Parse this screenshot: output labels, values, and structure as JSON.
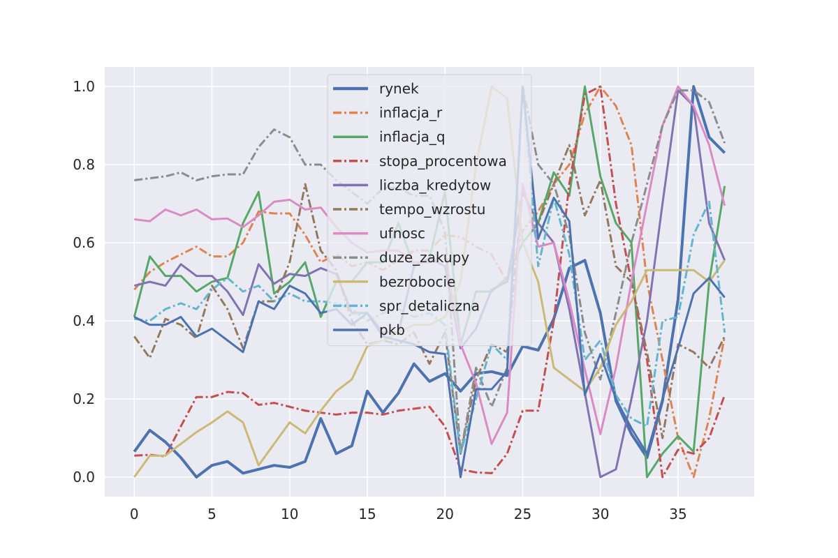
{
  "chart_data": {
    "type": "line",
    "title": "",
    "xlabel": "",
    "ylabel": "",
    "xlim": [
      -1.9,
      39.9
    ],
    "ylim": [
      -0.05,
      1.05
    ],
    "xticks": [
      0,
      5,
      10,
      15,
      20,
      25,
      30,
      35
    ],
    "yticks": [
      0.0,
      0.2,
      0.4,
      0.6,
      0.8,
      1.0
    ],
    "xtick_labels": [
      "0",
      "5",
      "10",
      "15",
      "20",
      "25",
      "30",
      "35"
    ],
    "ytick_labels": [
      "0.0",
      "0.2",
      "0.4",
      "0.6",
      "0.8",
      "1.0"
    ],
    "grid": true,
    "legend_position": "upper-center",
    "x": [
      0,
      1,
      2,
      3,
      4,
      5,
      6,
      7,
      8,
      9,
      10,
      11,
      12,
      13,
      14,
      15,
      16,
      17,
      18,
      19,
      20,
      21,
      22,
      23,
      24,
      25,
      26,
      27,
      28,
      29,
      30,
      31,
      32,
      33,
      34,
      35,
      36,
      37,
      38
    ],
    "series": [
      {
        "name": "rynek",
        "color": "#4c72b0",
        "style": "solid",
        "width": 4,
        "values": [
          0.065,
          0.12,
          0.09,
          0.05,
          0.0,
          0.03,
          0.04,
          0.01,
          0.02,
          0.03,
          0.025,
          0.04,
          0.15,
          0.06,
          0.08,
          0.22,
          0.165,
          0.215,
          0.29,
          0.245,
          0.265,
          0.22,
          0.265,
          0.27,
          0.26,
          0.335,
          0.325,
          0.405,
          0.535,
          0.555,
          0.42,
          0.195,
          0.11,
          0.05,
          0.195,
          0.455,
          1.0,
          0.87,
          0.83
        ]
      },
      {
        "name": "inflacja_r",
        "color": "#dd8452",
        "style": "dashdot",
        "width": 3,
        "values": [
          0.48,
          0.525,
          0.55,
          0.57,
          0.59,
          0.565,
          0.565,
          0.6,
          0.68,
          0.675,
          0.675,
          0.62,
          0.55,
          0.57,
          0.54,
          0.55,
          0.53,
          0.555,
          0.58,
          0.58,
          0.62,
          0.615,
          0.59,
          0.57,
          0.5,
          0.63,
          0.68,
          0.75,
          0.8,
          0.93,
          1.0,
          0.95,
          0.85,
          0.5,
          0.3,
          0.1,
          0.0,
          0.15,
          0.36
        ]
      },
      {
        "name": "inflacja_q",
        "color": "#55a868",
        "style": "solid",
        "width": 3,
        "values": [
          0.41,
          0.565,
          0.515,
          0.515,
          0.475,
          0.5,
          0.51,
          0.65,
          0.73,
          0.47,
          0.5,
          0.55,
          0.41,
          0.5,
          0.5,
          0.55,
          0.55,
          0.65,
          0.54,
          0.56,
          0.73,
          0.34,
          0.475,
          0.475,
          0.51,
          0.6,
          0.65,
          0.78,
          0.72,
          1.0,
          0.77,
          0.65,
          0.6,
          0.0,
          0.06,
          0.105,
          0.065,
          0.5,
          0.745
        ]
      },
      {
        "name": "stopa_procentowa",
        "color": "#c44e52",
        "style": "dashdot",
        "width": 3,
        "values": [
          0.055,
          0.057,
          0.053,
          0.13,
          0.205,
          0.205,
          0.218,
          0.215,
          0.185,
          0.19,
          0.18,
          0.17,
          0.165,
          0.16,
          0.165,
          0.165,
          0.16,
          0.17,
          0.175,
          0.18,
          0.13,
          0.02,
          0.012,
          0.01,
          0.06,
          0.17,
          0.17,
          0.4,
          0.75,
          0.98,
          1.0,
          0.7,
          0.5,
          0.3,
          0.0,
          0.07,
          0.06,
          0.1,
          0.21
        ]
      },
      {
        "name": "liczba_kredytow",
        "color": "#8172b3",
        "style": "solid",
        "width": 3,
        "values": [
          0.49,
          0.5,
          0.49,
          0.545,
          0.515,
          0.515,
          0.475,
          0.415,
          0.545,
          0.495,
          0.52,
          0.515,
          0.535,
          0.52,
          0.42,
          0.42,
          0.37,
          0.37,
          0.54,
          0.56,
          0.54,
          0.33,
          0.38,
          0.48,
          0.5,
          0.73,
          0.65,
          0.6,
          0.43,
          0.215,
          0.0,
          0.02,
          0.2,
          0.4,
          0.7,
          0.99,
          0.95,
          0.65,
          0.555
        ]
      },
      {
        "name": "tempo_wzrostu",
        "color": "#937860",
        "style": "dashdot",
        "width": 3,
        "values": [
          0.36,
          0.305,
          0.405,
          0.39,
          0.355,
          0.49,
          0.43,
          0.33,
          0.45,
          0.45,
          0.55,
          0.75,
          0.58,
          0.53,
          0.4,
          0.34,
          0.35,
          0.34,
          0.37,
          0.29,
          0.37,
          0.06,
          0.25,
          0.34,
          0.32,
          0.73,
          0.65,
          0.75,
          0.85,
          0.67,
          0.76,
          0.54,
          0.5,
          0.32,
          0.1,
          0.34,
          0.32,
          0.28,
          0.36
        ]
      },
      {
        "name": "ufnosc",
        "color": "#da8bc3",
        "style": "solid",
        "width": 3,
        "values": [
          0.66,
          0.655,
          0.685,
          0.67,
          0.685,
          0.66,
          0.662,
          0.64,
          0.67,
          0.705,
          0.71,
          0.685,
          0.69,
          0.64,
          0.6,
          0.575,
          0.58,
          0.58,
          0.55,
          0.55,
          0.57,
          0.34,
          0.24,
          0.085,
          0.165,
          0.75,
          0.59,
          0.6,
          0.45,
          0.275,
          0.11,
          0.28,
          0.5,
          0.7,
          0.9,
          1.0,
          0.95,
          0.85,
          0.695
        ]
      },
      {
        "name": "duze_zakupy",
        "color": "#8c8c8c",
        "style": "dashdot",
        "width": 3,
        "values": [
          0.76,
          0.765,
          0.77,
          0.78,
          0.76,
          0.77,
          0.775,
          0.775,
          0.845,
          0.89,
          0.87,
          0.8,
          0.8,
          0.76,
          0.73,
          0.7,
          0.74,
          0.74,
          0.72,
          0.72,
          0.63,
          0.06,
          0.28,
          0.18,
          0.28,
          1.0,
          0.8,
          0.75,
          0.62,
          0.37,
          0.25,
          0.42,
          0.6,
          0.75,
          0.9,
          0.99,
          0.99,
          0.96,
          0.855
        ]
      },
      {
        "name": "bezrobocie",
        "color": "#ccb974",
        "style": "solid",
        "width": 3,
        "values": [
          0.0,
          0.055,
          0.055,
          0.085,
          0.115,
          0.14,
          0.168,
          0.14,
          0.03,
          0.085,
          0.14,
          0.112,
          0.17,
          0.22,
          0.25,
          0.335,
          0.35,
          0.37,
          0.39,
          0.39,
          0.41,
          0.5,
          0.8,
          1.0,
          0.97,
          0.6,
          0.5,
          0.28,
          0.25,
          0.22,
          0.28,
          0.39,
          0.45,
          0.53,
          0.53,
          0.53,
          0.53,
          0.5,
          0.555
        ]
      },
      {
        "name": "spr_detaliczna",
        "color": "#64b5cd",
        "style": "dashdot",
        "width": 3,
        "values": [
          0.405,
          0.4,
          0.43,
          0.445,
          0.43,
          0.48,
          0.51,
          0.475,
          0.49,
          0.45,
          0.47,
          0.45,
          0.45,
          0.445,
          0.43,
          0.4,
          0.42,
          0.43,
          0.41,
          0.42,
          0.39,
          0.06,
          0.2,
          0.34,
          0.3,
          1.0,
          0.54,
          0.715,
          0.57,
          0.3,
          0.35,
          0.21,
          0.15,
          0.13,
          0.4,
          0.41,
          0.62,
          0.705,
          0.37
        ]
      },
      {
        "name": "pkb",
        "color": "#4c72b0",
        "style": "solid",
        "width": 3,
        "values": [
          0.41,
          0.39,
          0.39,
          0.41,
          0.36,
          0.38,
          0.35,
          0.32,
          0.45,
          0.43,
          0.49,
          0.47,
          0.42,
          0.43,
          0.39,
          0.42,
          0.36,
          0.35,
          0.34,
          0.32,
          0.315,
          0.0,
          0.225,
          0.225,
          0.27,
          1.0,
          0.61,
          0.715,
          0.655,
          0.21,
          0.315,
          0.2,
          0.125,
          0.06,
          0.2,
          0.33,
          0.47,
          0.51,
          0.46
        ]
      }
    ]
  }
}
